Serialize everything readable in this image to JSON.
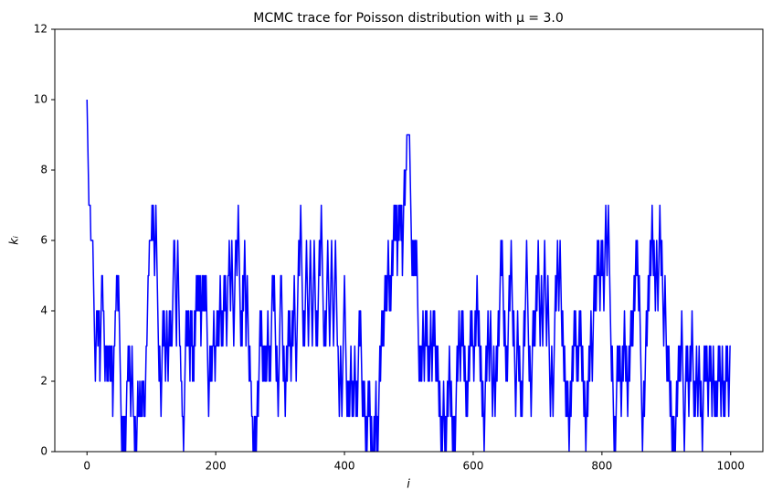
{
  "chart_data": {
    "type": "line",
    "title": "MCMC trace for Poisson distribution with μ = 3.0",
    "xlabel": "i",
    "ylabel": "kᵢ",
    "color": "#0000ff",
    "xlim": [
      -50,
      1050
    ],
    "xticks": [
      0,
      200,
      400,
      600,
      800,
      1000
    ],
    "ylim": [
      0,
      12
    ],
    "yticks": [
      0,
      2,
      4,
      6,
      8,
      10,
      12
    ],
    "grid": false,
    "values": [
      10,
      9,
      8,
      7,
      7,
      7,
      6,
      6,
      6,
      6,
      5,
      4,
      3,
      2,
      3,
      4,
      4,
      3,
      4,
      4,
      2,
      3,
      4,
      5,
      5,
      4,
      4,
      3,
      2,
      3,
      3,
      2,
      3,
      2,
      3,
      3,
      2,
      3,
      2,
      3,
      1,
      2,
      3,
      3,
      4,
      4,
      5,
      5,
      4,
      5,
      4,
      3,
      2,
      1,
      0,
      1,
      0,
      1,
      0,
      1,
      0,
      1,
      2,
      2,
      3,
      2,
      3,
      2,
      1,
      2,
      3,
      2,
      1,
      1,
      0,
      1,
      0,
      0,
      1,
      2,
      1,
      1,
      2,
      1,
      1,
      2,
      1,
      2,
      2,
      1,
      1,
      2,
      3,
      3,
      4,
      5,
      5,
      6,
      6,
      6,
      6,
      7,
      6,
      7,
      6,
      5,
      6,
      7,
      6,
      5,
      4,
      3,
      2,
      3,
      2,
      1,
      2,
      3,
      4,
      3,
      4,
      3,
      2,
      3,
      4,
      3,
      2,
      3,
      4,
      3,
      4,
      3,
      3,
      4,
      5,
      6,
      6,
      5,
      4,
      3,
      5,
      6,
      5,
      4,
      3,
      3,
      2,
      2,
      1,
      1,
      0,
      1,
      2,
      3,
      4,
      3,
      4,
      3,
      4,
      3,
      2,
      4,
      3,
      4,
      2,
      3,
      2,
      4,
      3,
      4,
      5,
      4,
      5,
      4,
      5,
      4,
      5,
      3,
      4,
      5,
      4,
      5,
      4,
      5,
      4,
      5,
      4,
      3,
      2,
      1,
      2,
      3,
      2,
      3,
      2,
      3,
      3,
      4,
      3,
      2,
      3,
      3,
      4,
      3,
      4,
      3,
      4,
      5,
      4,
      3,
      4,
      3,
      4,
      5,
      4,
      5,
      4,
      3,
      4,
      5,
      5,
      6,
      5,
      4,
      5,
      6,
      5,
      4,
      3,
      4,
      5,
      6,
      6,
      5,
      6,
      7,
      6,
      5,
      4,
      3,
      4,
      3,
      5,
      4,
      5,
      6,
      5,
      3,
      4,
      5,
      4,
      3,
      2,
      3,
      2,
      2,
      1,
      1,
      0,
      0,
      1,
      0,
      1,
      0,
      1,
      2,
      1,
      2,
      3,
      4,
      3,
      4,
      3,
      2,
      3,
      2,
      3,
      2,
      3,
      2,
      3,
      4,
      3,
      2,
      3,
      2,
      3,
      4,
      5,
      5,
      4,
      5,
      4,
      3,
      2,
      3,
      2,
      1,
      2,
      3,
      4,
      5,
      5,
      4,
      3,
      2,
      3,
      2,
      1,
      2,
      3,
      2,
      3,
      4,
      3,
      4,
      3,
      2,
      3,
      4,
      3,
      4,
      5,
      4,
      3,
      2,
      3,
      4,
      5,
      6,
      5,
      6,
      7,
      6,
      5,
      4,
      3,
      4,
      3,
      4,
      5,
      6,
      5,
      4,
      3,
      4,
      5,
      6,
      5,
      4,
      3,
      4,
      5,
      6,
      5,
      4,
      3,
      4,
      3,
      4,
      5,
      6,
      5,
      6,
      7,
      6,
      5,
      4,
      3,
      3,
      4,
      3,
      4,
      5,
      6,
      5,
      4,
      3,
      4,
      5,
      6,
      5,
      4,
      3,
      4,
      5,
      6,
      5,
      4,
      3,
      3,
      2,
      1,
      2,
      3,
      2,
      1,
      2,
      3,
      4,
      5,
      4,
      3,
      2,
      1,
      2,
      1,
      2,
      1,
      2,
      3,
      2,
      1,
      2,
      1,
      2,
      3,
      2,
      1,
      2,
      1,
      2,
      3,
      4,
      3,
      4,
      3,
      2,
      1,
      2,
      1,
      2,
      1,
      0,
      1,
      0,
      1,
      2,
      1,
      2,
      1,
      0,
      1,
      0,
      0,
      0,
      1,
      0,
      1,
      2,
      0,
      1,
      0,
      1,
      2,
      3,
      2,
      3,
      4,
      3,
      4,
      3,
      4,
      5,
      4,
      5,
      4,
      5,
      6,
      5,
      4,
      5,
      4,
      5,
      6,
      5,
      6,
      7,
      6,
      7,
      6,
      7,
      5,
      6,
      7,
      6,
      7,
      7,
      6,
      7,
      5,
      6,
      7,
      8,
      7,
      8,
      8,
      9,
      9,
      9,
      9,
      9,
      8,
      7,
      6,
      5,
      6,
      5,
      6,
      5,
      6,
      5,
      6,
      5,
      4,
      3,
      2,
      3,
      2,
      3,
      2,
      3,
      4,
      3,
      2,
      3,
      4,
      3,
      4,
      3,
      2,
      3,
      2,
      3,
      4,
      3,
      2,
      3,
      4,
      3,
      4,
      3,
      2,
      3,
      2,
      3,
      2,
      1,
      2,
      1,
      0,
      1,
      0,
      1,
      2,
      1,
      0,
      1,
      0,
      1,
      2,
      1,
      2,
      3,
      2,
      1,
      2,
      1,
      0,
      1,
      0,
      1,
      0,
      1,
      2,
      3,
      2,
      3,
      4,
      3,
      2,
      3,
      4,
      3,
      4,
      3,
      2,
      3,
      2,
      1,
      2,
      1,
      2,
      3,
      2,
      3,
      4,
      3,
      4,
      3,
      3,
      2,
      3,
      4,
      3,
      4,
      5,
      4,
      3,
      4,
      3,
      2,
      3,
      2,
      1,
      2,
      1,
      0,
      1,
      2,
      3,
      2,
      3,
      4,
      3,
      2,
      3,
      4,
      3,
      2,
      1,
      2,
      3,
      2,
      1,
      2,
      3,
      2,
      3,
      4,
      3,
      4,
      5,
      6,
      5,
      6,
      5,
      4,
      3,
      4,
      3,
      2,
      3,
      2,
      3,
      4,
      5,
      4,
      5,
      6,
      5,
      4,
      3,
      4,
      3,
      2,
      1,
      2,
      3,
      4,
      3,
      2,
      3,
      2,
      1,
      2,
      1,
      2,
      3,
      4,
      3,
      4,
      5,
      6,
      5,
      4,
      3,
      2,
      3,
      2,
      1,
      2,
      3,
      4,
      3,
      4,
      3,
      4,
      5,
      4,
      5,
      6,
      5,
      4,
      3,
      4,
      5,
      4,
      3,
      4,
      5,
      6,
      5,
      4,
      3,
      4,
      5,
      4,
      3,
      2,
      1,
      2,
      3,
      2,
      1,
      2,
      3,
      4,
      5,
      4,
      5,
      6,
      5,
      4,
      5,
      6,
      5,
      4,
      3,
      4,
      3,
      2,
      3,
      2,
      1,
      2,
      1,
      2,
      1,
      0,
      1,
      2,
      1,
      2,
      3,
      2,
      3,
      4,
      3,
      4,
      3,
      2,
      3,
      2,
      3,
      4,
      3,
      4,
      3,
      2,
      3,
      2,
      1,
      2,
      1,
      0,
      1,
      2,
      1,
      2,
      3,
      2,
      3,
      4,
      3,
      2,
      3,
      4,
      5,
      4,
      5,
      4,
      5,
      6,
      5,
      6,
      5,
      4,
      5,
      6,
      5,
      6,
      5,
      4,
      5,
      6,
      7,
      6,
      5,
      6,
      7,
      6,
      5,
      4,
      3,
      2,
      3,
      2,
      1,
      0,
      1,
      0,
      1,
      2,
      3,
      2,
      3,
      2,
      3,
      2,
      1,
      2,
      3,
      2,
      3,
      4,
      3,
      2,
      3,
      2,
      1,
      2,
      3,
      2,
      3,
      4,
      3,
      4,
      3,
      4,
      5,
      4,
      5,
      6,
      5,
      6,
      5,
      4,
      5,
      4,
      3,
      2,
      1,
      0,
      1,
      2,
      1,
      2,
      3,
      4,
      3,
      4,
      5,
      4,
      5,
      6,
      5,
      6,
      7,
      6,
      5,
      6,
      5,
      4,
      5,
      6,
      5,
      4,
      5,
      6,
      7,
      6,
      5,
      6,
      5,
      4,
      3,
      4,
      5,
      4,
      3,
      2,
      3,
      2,
      3,
      2,
      1,
      2,
      1,
      0,
      1,
      0,
      1,
      0,
      0,
      1,
      2,
      1,
      2,
      3,
      2,
      3,
      2,
      3,
      4,
      3,
      2,
      1,
      0,
      1,
      2,
      3,
      2,
      3,
      2,
      1,
      2,
      3,
      2,
      3,
      4,
      3,
      2,
      1,
      2,
      1,
      2,
      3,
      2,
      1,
      2,
      3,
      2,
      1,
      2,
      1,
      0,
      1,
      2,
      3,
      2,
      3,
      2,
      3,
      2,
      1,
      2,
      3,
      2,
      3,
      2,
      1,
      2,
      3,
      2,
      1,
      2,
      1,
      2,
      1,
      2,
      3,
      2,
      3,
      2,
      1,
      2,
      3,
      2,
      1,
      2,
      1,
      2,
      3,
      2,
      3,
      2,
      1,
      2,
      3,
      3
    ]
  }
}
